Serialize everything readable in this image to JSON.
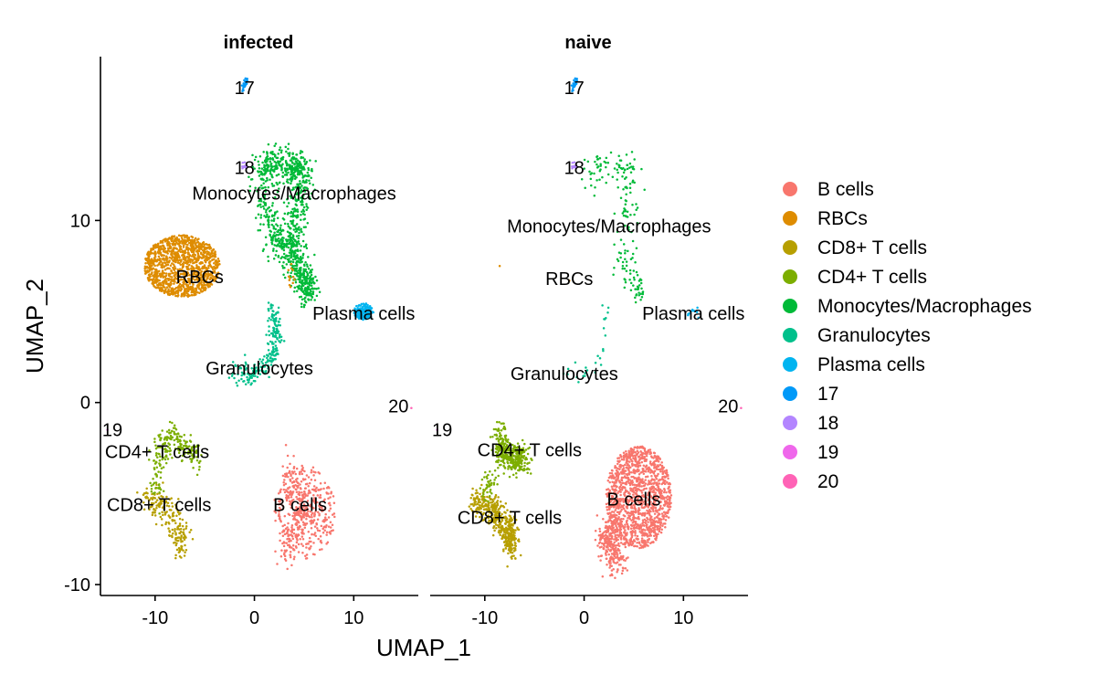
{
  "chart_data": {
    "type": "scatter",
    "xlabel": "UMAP_1",
    "ylabel": "UMAP_2",
    "xlim": [
      -15.5,
      16.5
    ],
    "ylim": [
      -10.6,
      19
    ],
    "x_ticks": [
      -10,
      0,
      10
    ],
    "y_ticks": [
      -10,
      0,
      10
    ],
    "grid": false,
    "legend_position": "right",
    "panels": [
      {
        "title": "infected",
        "cluster_labels": [
          {
            "text": "17",
            "x": -1,
            "y": 17.3
          },
          {
            "text": "18",
            "x": -1,
            "y": 12.9
          },
          {
            "text": "Monocytes/Macrophages",
            "x": 4,
            "y": 11.5
          },
          {
            "text": "RBCs",
            "x": -5.5,
            "y": 6.9
          },
          {
            "text": "Plasma cells",
            "x": 11,
            "y": 4.9
          },
          {
            "text": "Granulocytes",
            "x": 0.5,
            "y": 1.9
          },
          {
            "text": "20",
            "x": 14.5,
            "y": -0.2
          },
          {
            "text": "19",
            "x": -14.3,
            "y": -1.5
          },
          {
            "text": "CD4+ T cells",
            "x": -9.8,
            "y": -2.7
          },
          {
            "text": "CD8+ T cells",
            "x": -9.6,
            "y": -5.6
          },
          {
            "text": "B cells",
            "x": 4.6,
            "y": -5.6
          }
        ]
      },
      {
        "title": "naive",
        "cluster_labels": [
          {
            "text": "17",
            "x": -1,
            "y": 17.3
          },
          {
            "text": "18",
            "x": -1,
            "y": 12.9
          },
          {
            "text": "Monocytes/Macrophages",
            "x": 2.5,
            "y": 9.7
          },
          {
            "text": "RBCs",
            "x": -1.5,
            "y": 6.8
          },
          {
            "text": "Plasma cells",
            "x": 11,
            "y": 4.9
          },
          {
            "text": "Granulocytes",
            "x": -2,
            "y": 1.6
          },
          {
            "text": "20",
            "x": 14.5,
            "y": -0.2
          },
          {
            "text": "19",
            "x": -14.3,
            "y": -1.5
          },
          {
            "text": "CD4+ T cells",
            "x": -5.5,
            "y": -2.6
          },
          {
            "text": "CD8+ T cells",
            "x": -7.5,
            "y": -6.3
          },
          {
            "text": "B cells",
            "x": 5,
            "y": -5.3
          }
        ]
      }
    ],
    "series": [
      {
        "name": "B cells",
        "color": "#F8766D"
      },
      {
        "name": "RBCs",
        "color": "#DE8C00"
      },
      {
        "name": "CD8+ T cells",
        "color": "#B79F00"
      },
      {
        "name": "CD4+ T cells",
        "color": "#7CAE00"
      },
      {
        "name": "Monocytes/Macrophages",
        "color": "#00BA38"
      },
      {
        "name": "Granulocytes",
        "color": "#00C08B"
      },
      {
        "name": "Plasma cells",
        "color": "#00B4F0"
      },
      {
        "name": "17",
        "color": "#0099F8"
      },
      {
        "name": "18",
        "color": "#B385FF"
      },
      {
        "name": "19",
        "color": "#EF67EB"
      },
      {
        "name": "20",
        "color": "#FF63B6"
      }
    ]
  }
}
